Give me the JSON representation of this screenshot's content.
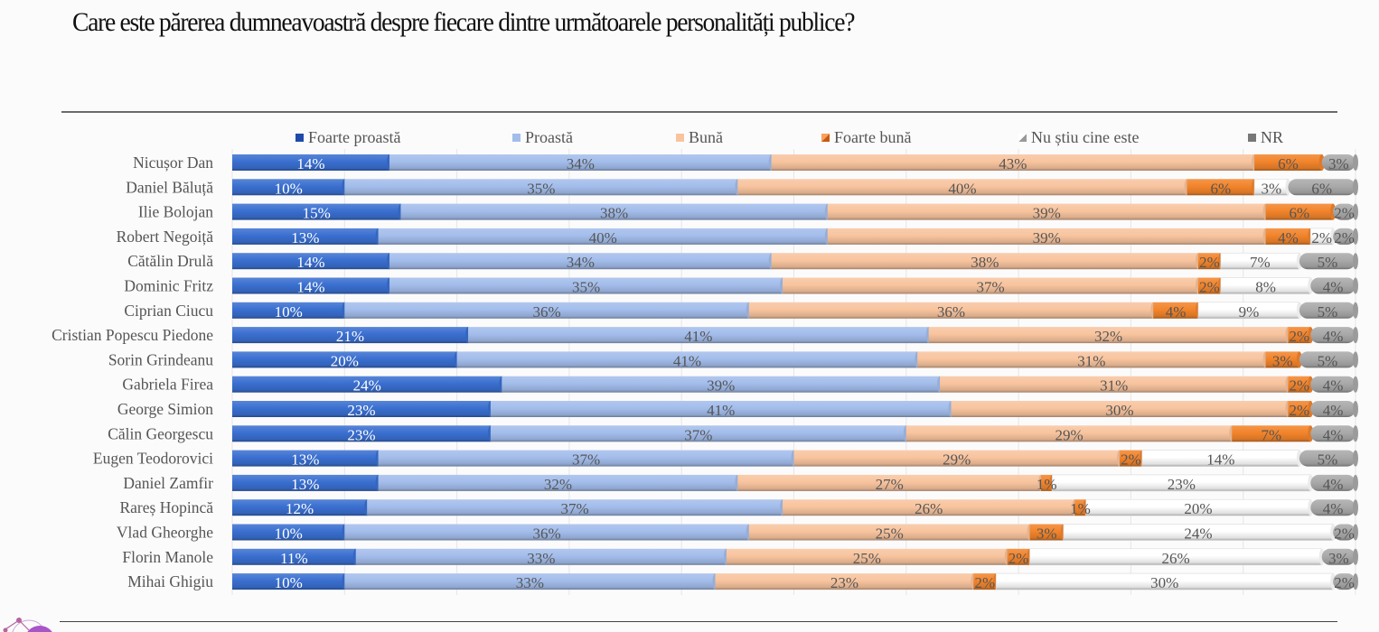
{
  "title": "Care este părerea dumneavoastră despre fiecare dintre următoarele personalități publice?",
  "chart_data": {
    "type": "bar",
    "orientation": "horizontal",
    "stacked": true,
    "percent_stacked": true,
    "title": "Care este părerea dumneavoastră despre fiecare dintre următoarele personalități publice?",
    "xlabel": "",
    "ylabel": "",
    "xlim": [
      0,
      100
    ],
    "grid": true,
    "legend_position": "top",
    "categories": [
      "Nicușor Dan",
      "Daniel Băluță",
      "Ilie Bolojan",
      "Robert Negoiță",
      "Cătălin Drulă",
      "Dominic Fritz",
      "Ciprian Ciucu",
      "Cristian Popescu Piedone",
      "Sorin Grindeanu",
      "Gabriela Firea",
      "George Simion",
      "Călin Georgescu",
      "Eugen Teodorovici",
      "Daniel Zamfir",
      "Rareș Hopincă",
      "Vlad Gheorghe",
      "Florin Manole",
      "Mihai Ghigiu"
    ],
    "series": [
      {
        "name": "Foarte proastă",
        "color": "#3a6fd0",
        "label_color": "#ffffff",
        "values": [
          14,
          10,
          15,
          13,
          14,
          14,
          10,
          21,
          20,
          24,
          23,
          23,
          13,
          13,
          12,
          10,
          11,
          10
        ]
      },
      {
        "name": "Proastă",
        "color": "#a3bdeb",
        "label_color": "#555555",
        "values": [
          34,
          35,
          38,
          40,
          34,
          35,
          36,
          41,
          41,
          39,
          41,
          37,
          37,
          32,
          37,
          36,
          33,
          33
        ]
      },
      {
        "name": "Bună",
        "color": "#f8c49e",
        "label_color": "#555555",
        "values": [
          43,
          40,
          39,
          39,
          38,
          37,
          36,
          32,
          31,
          31,
          30,
          29,
          29,
          27,
          26,
          25,
          25,
          23
        ]
      },
      {
        "name": "Foarte bună",
        "color": "#f2842b",
        "label_color": "#555555",
        "values": [
          6,
          6,
          6,
          4,
          2,
          2,
          4,
          2,
          3,
          2,
          2,
          7,
          2,
          1,
          1,
          3,
          2,
          2
        ]
      },
      {
        "name": "Nu știu cine este",
        "color": "#ffffff",
        "label_color": "#555555",
        "values": [
          0,
          3,
          0,
          2,
          7,
          8,
          9,
          0,
          0,
          0,
          0,
          0,
          14,
          23,
          20,
          24,
          26,
          30
        ]
      },
      {
        "name": "NR",
        "color": "#a9a9a9",
        "label_color": "#555555",
        "values": [
          3,
          6,
          2,
          2,
          5,
          4,
          5,
          4,
          5,
          4,
          4,
          4,
          5,
          4,
          4,
          2,
          3,
          2
        ]
      }
    ]
  }
}
